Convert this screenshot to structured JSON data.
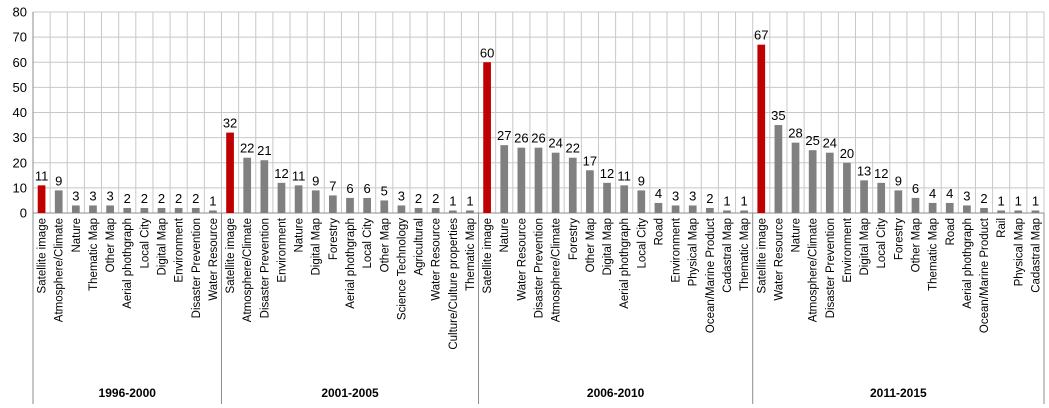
{
  "chart_data": {
    "type": "bar",
    "title": "",
    "xlabel": "",
    "ylabel": "",
    "ylim": [
      0,
      80
    ],
    "yticks": [
      0,
      10,
      20,
      30,
      40,
      50,
      60,
      70,
      80
    ],
    "grid": true,
    "legend": "none",
    "colors": {
      "highlight": "#c00000",
      "bar": "#808080",
      "grid": "#c8c8c8",
      "axis": "#8c8c8c"
    },
    "groups": [
      {
        "label": "1996-2000",
        "categories": [
          "Satellite image",
          "Atmosphere/Climate",
          "Nature",
          "Thematic Map",
          "Other Map",
          "Aerial phothgraph",
          "Local City",
          "Digital Map",
          "Environment",
          "Disaster Prevention",
          "Water Resource"
        ],
        "values": [
          11,
          9,
          3,
          3,
          3,
          2,
          2,
          2,
          2,
          2,
          1
        ]
      },
      {
        "label": "2001-2005",
        "categories": [
          "Satellite image",
          "Atmosphere/Climate",
          "Disaster Prevention",
          "Environment",
          "Nature",
          "Digital Map",
          "Forestry",
          "Aerial phothgraph",
          "Local City",
          "Other Map",
          "Science Technology",
          "Agricultural",
          "Water Resource",
          "Culture/Culture properties",
          "Thematic Map"
        ],
        "values": [
          32,
          22,
          21,
          12,
          11,
          9,
          7,
          6,
          6,
          5,
          3,
          2,
          2,
          1,
          1
        ]
      },
      {
        "label": "2006-2010",
        "categories": [
          "Satellite image",
          "Nature",
          "Water Resource",
          "Disaster Prevention",
          "Atmosphere/Climate",
          "Forestry",
          "Other Map",
          "Digital Map",
          "Aerial phothgraph",
          "Local City",
          "Road",
          "Environment",
          "Physical Map",
          "Ocean/Marine Product",
          "Cadastral Map",
          "Thematic Map"
        ],
        "values": [
          60,
          27,
          26,
          26,
          24,
          22,
          17,
          12,
          11,
          9,
          4,
          3,
          3,
          2,
          1,
          1
        ]
      },
      {
        "label": "2011-2015",
        "categories": [
          "Satellite image",
          "Water Resource",
          "Nature",
          "Atmosphere/Climate",
          "Disaster Prevention",
          "Environment",
          "Digital Map",
          "Local City",
          "Forestry",
          "Other Map",
          "Thematic Map",
          "Road",
          "Aerial phothgraph",
          "Ocean/Marine Product",
          "Rail",
          "Physical Map",
          "Cadastral Map"
        ],
        "values": [
          67,
          35,
          28,
          25,
          24,
          20,
          13,
          12,
          9,
          6,
          4,
          4,
          3,
          2,
          1,
          1,
          1
        ]
      }
    ]
  }
}
